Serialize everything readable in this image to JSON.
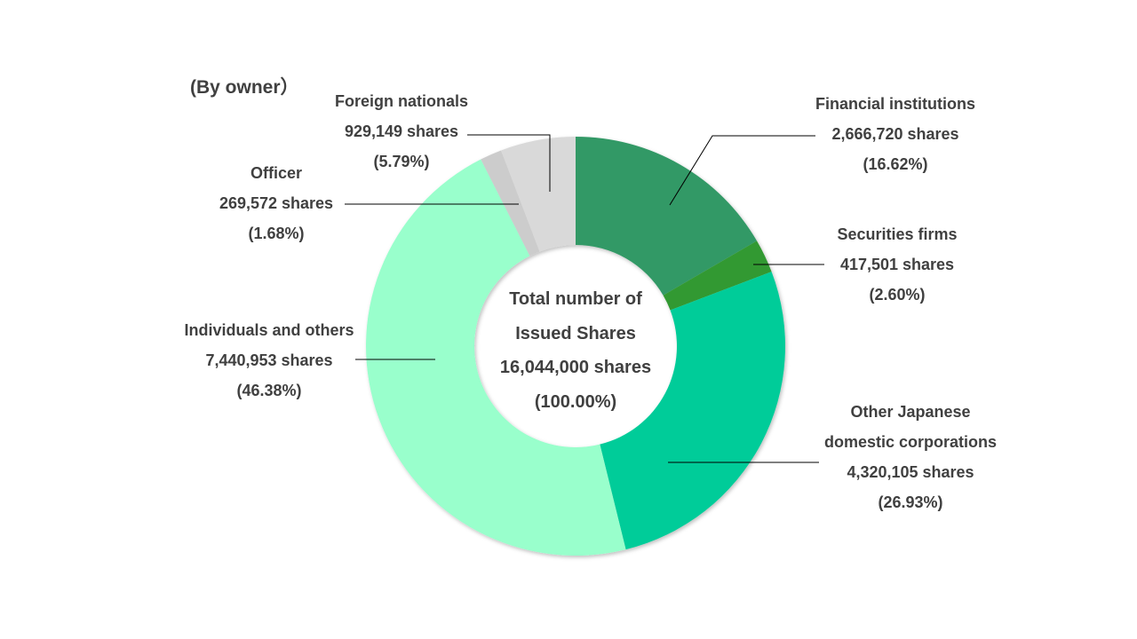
{
  "chart_data": {
    "type": "pie",
    "heading": "(By owner）",
    "center": {
      "line1": "Total number of",
      "line2": "Issued Shares",
      "line3": "16,044,000 shares",
      "line4": "(100.00%)"
    },
    "slices": [
      {
        "label": "Financial institutions",
        "lines": [
          "Financial institutions"
        ],
        "shares": "2,666,720 shares",
        "percent": "(16.62%)",
        "value": 16.62,
        "color": "#339966"
      },
      {
        "label": "Securities firms",
        "lines": [
          "Securities firms"
        ],
        "shares": "417,501 shares",
        "percent": "(2.60%)",
        "value": 2.6,
        "color": "#339933"
      },
      {
        "label": "Other Japanese domestic corporations",
        "lines": [
          "Other Japanese",
          "domestic corporations"
        ],
        "shares": "4,320,105 shares",
        "percent": "(26.93%)",
        "value": 26.93,
        "color": "#00cc99"
      },
      {
        "label": "Individuals and others",
        "lines": [
          "Individuals and others"
        ],
        "shares": "7,440,953 shares",
        "percent": "(46.38%)",
        "value": 46.38,
        "color": "#99ffcc"
      },
      {
        "label": "Officer",
        "lines": [
          "Officer"
        ],
        "shares": "269,572 shares",
        "percent": "(1.68%)",
        "value": 1.68,
        "color": "#cccccc"
      },
      {
        "label": "Foreign nationals",
        "lines": [
          "Foreign nationals"
        ],
        "shares": "929,149 shares",
        "percent": "(5.79%)",
        "value": 5.79,
        "color": "#d9d9d9"
      }
    ]
  }
}
